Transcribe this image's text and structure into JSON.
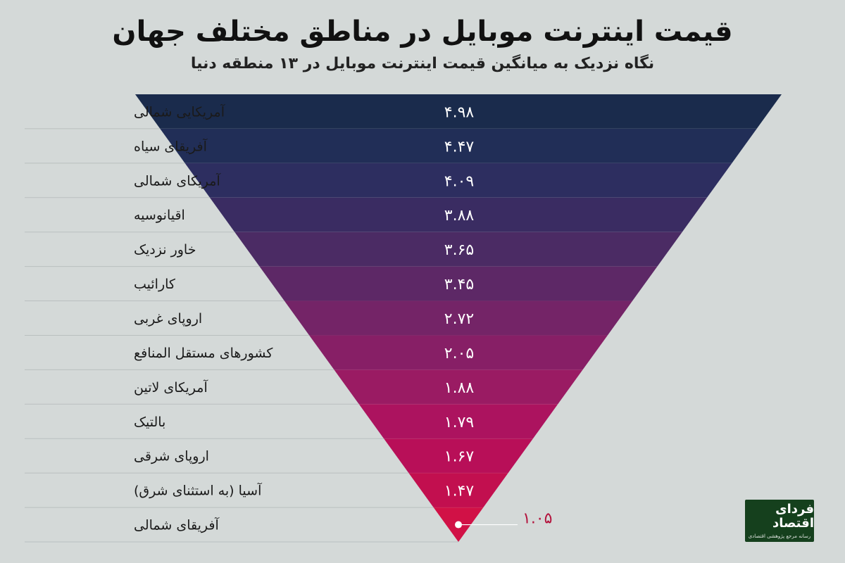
{
  "header": {
    "title": "قیمت اینترنت موبایل در مناطق مختلف جهان",
    "subtitle": "نگاه نزدیک به میانگین قیمت اینترنت موبایل  در ۱۳ منطقه دنیا"
  },
  "logo": {
    "text": "فردای اقتصاد",
    "tagline": "رسانه مرجع پژوهشی اقتصادی"
  },
  "chart_data": {
    "type": "bar",
    "title": "قیمت اینترنت موبایل در مناطق مختلف جهان",
    "subtitle": "نگاه نزدیک به میانگین قیمت اینترنت موبایل  در ۱۳ منطقه دنیا",
    "categories": [
      "آمریکایی شمالی",
      "آفریقای سیاه",
      "آمریکای شمالی",
      "اقیانوسیه",
      "خاور نزدیک",
      "کارائیب",
      "اروپای غربی",
      "کشورهای مستقل المنافع",
      "آمریکای لاتین",
      "بالتیک",
      "اروپای شرقی",
      "آسیا (به استثنای شرق)",
      "آفریقای شمالی"
    ],
    "values": [
      4.98,
      4.47,
      4.09,
      3.88,
      3.65,
      3.45,
      2.72,
      2.05,
      1.88,
      1.79,
      1.67,
      1.47,
      1.05
    ],
    "value_labels": [
      "۴.۹۸",
      "۴.۴۷",
      "۴.۰۹",
      "۳.۸۸",
      "۳.۶۵",
      "۳.۴۵",
      "۲.۷۲",
      "۲.۰۵",
      "۱.۸۸",
      "۱.۷۹",
      "۱.۶۷",
      "۱.۴۷",
      "۱.۰۵"
    ],
    "colors": [
      "#1a2b4c",
      "#212e57",
      "#2d2e60",
      "#3a2c62",
      "#4b2b64",
      "#5d2866",
      "#742467",
      "#871f66",
      "#9a1b63",
      "#ac135f",
      "#b80f58",
      "#c20f4f",
      "#d11146"
    ],
    "annotation_color": "#b3123c",
    "grid": true,
    "legend": "none"
  }
}
